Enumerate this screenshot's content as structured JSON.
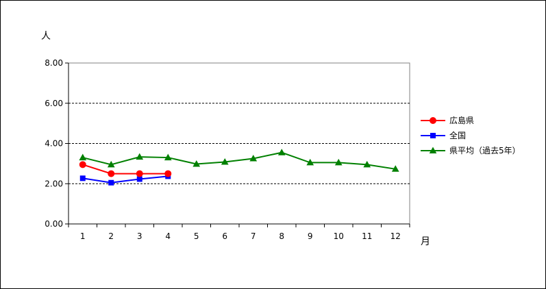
{
  "chart_data": {
    "type": "line",
    "ylabel": "人",
    "xlabel": "月",
    "categories": [
      "1",
      "2",
      "3",
      "4",
      "5",
      "6",
      "7",
      "8",
      "9",
      "10",
      "11",
      "12"
    ],
    "ylim": [
      0,
      8
    ],
    "yticks": [
      "0.00",
      "2.00",
      "4.00",
      "6.00",
      "8.00"
    ],
    "ytick_values": [
      0,
      2,
      4,
      6,
      8
    ],
    "grid": true,
    "legend_position": "right",
    "series": [
      {
        "name": "広島県",
        "color": "#ff0000",
        "marker": "circle",
        "values": [
          2.95,
          2.5,
          2.5,
          2.5,
          null,
          null,
          null,
          null,
          null,
          null,
          null,
          null
        ]
      },
      {
        "name": "全国",
        "color": "#0000ff",
        "marker": "square",
        "values": [
          2.27,
          2.05,
          2.23,
          2.37,
          null,
          null,
          null,
          null,
          null,
          null,
          null,
          null
        ]
      },
      {
        "name": "県平均（過去5年）",
        "color": "#008000",
        "marker": "triangle",
        "values": [
          3.3,
          2.95,
          3.33,
          3.3,
          2.98,
          3.08,
          3.25,
          3.55,
          3.05,
          3.05,
          2.95,
          2.73
        ]
      }
    ]
  }
}
